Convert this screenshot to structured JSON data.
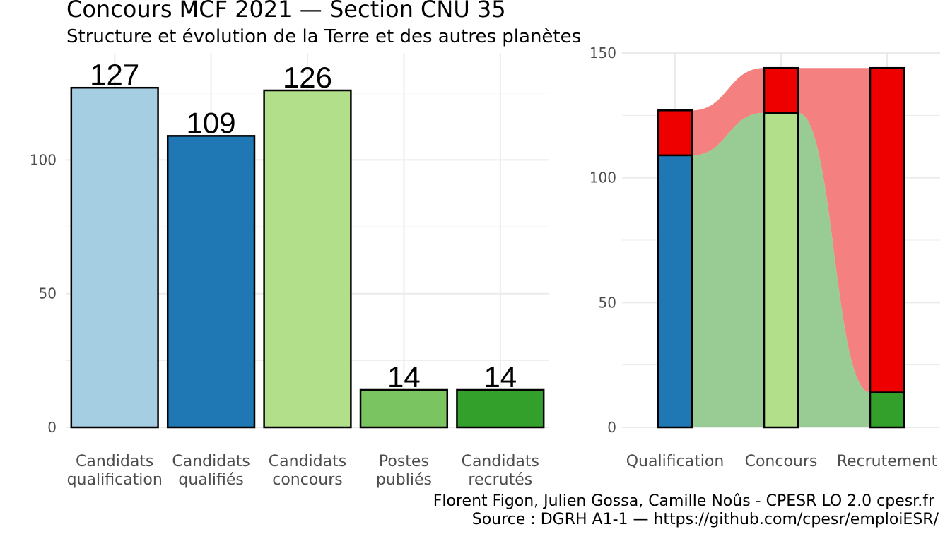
{
  "title": "Concours MCF  2021  —  Section CNU 35",
  "subtitle": "Structure et évolution de la Terre et des autres planètes",
  "caption": [
    "Florent Figon, Julien Gossa, Camille Noûs - CPESR LO 2.0 cpesr.fr",
    "Source : DGRH A1-1 — https://github.com/cpesr/emploiESR/"
  ],
  "colors": {
    "light_blue": "#a6cee3",
    "dark_blue": "#1f78b4",
    "light_green": "#b2df8a",
    "mid_green": "#7bc462",
    "dark_green": "#33a02c",
    "red": "#ee0000",
    "flow_red": "#f48080",
    "flow_green": "#98cc94",
    "grid": "#ebebeb",
    "axis_text": "#4d4d4d"
  },
  "chart_data": [
    {
      "type": "bar",
      "categories": [
        [
          "Candidats",
          "qualification"
        ],
        [
          "Candidats",
          "qualifiés"
        ],
        [
          "Candidats",
          "concours"
        ],
        [
          "Postes",
          "publiés"
        ],
        [
          "Candidats",
          "recrutés"
        ]
      ],
      "values": [
        127,
        109,
        126,
        14,
        14
      ],
      "bar_colors": [
        "light_blue",
        "dark_blue",
        "light_green",
        "mid_green",
        "dark_green"
      ],
      "ylim": [
        0,
        140
      ],
      "yticks": [
        0,
        50,
        100
      ],
      "grid": true
    },
    {
      "type": "bar",
      "stacked": true,
      "categories": [
        "Qualification",
        "Concours",
        "Recrutement"
      ],
      "series": [
        {
          "values": [
            109,
            126,
            14
          ],
          "colors": [
            "dark_blue",
            "light_green",
            "dark_green"
          ]
        },
        {
          "values": [
            18,
            18,
            130
          ],
          "colors": [
            "red",
            "red",
            "red"
          ]
        }
      ],
      "flows": {
        "red_band_color": "flow_red",
        "green_band_color": "flow_green"
      },
      "ylim": [
        0,
        150
      ],
      "yticks": [
        0,
        50,
        100,
        150
      ],
      "grid": true
    }
  ]
}
